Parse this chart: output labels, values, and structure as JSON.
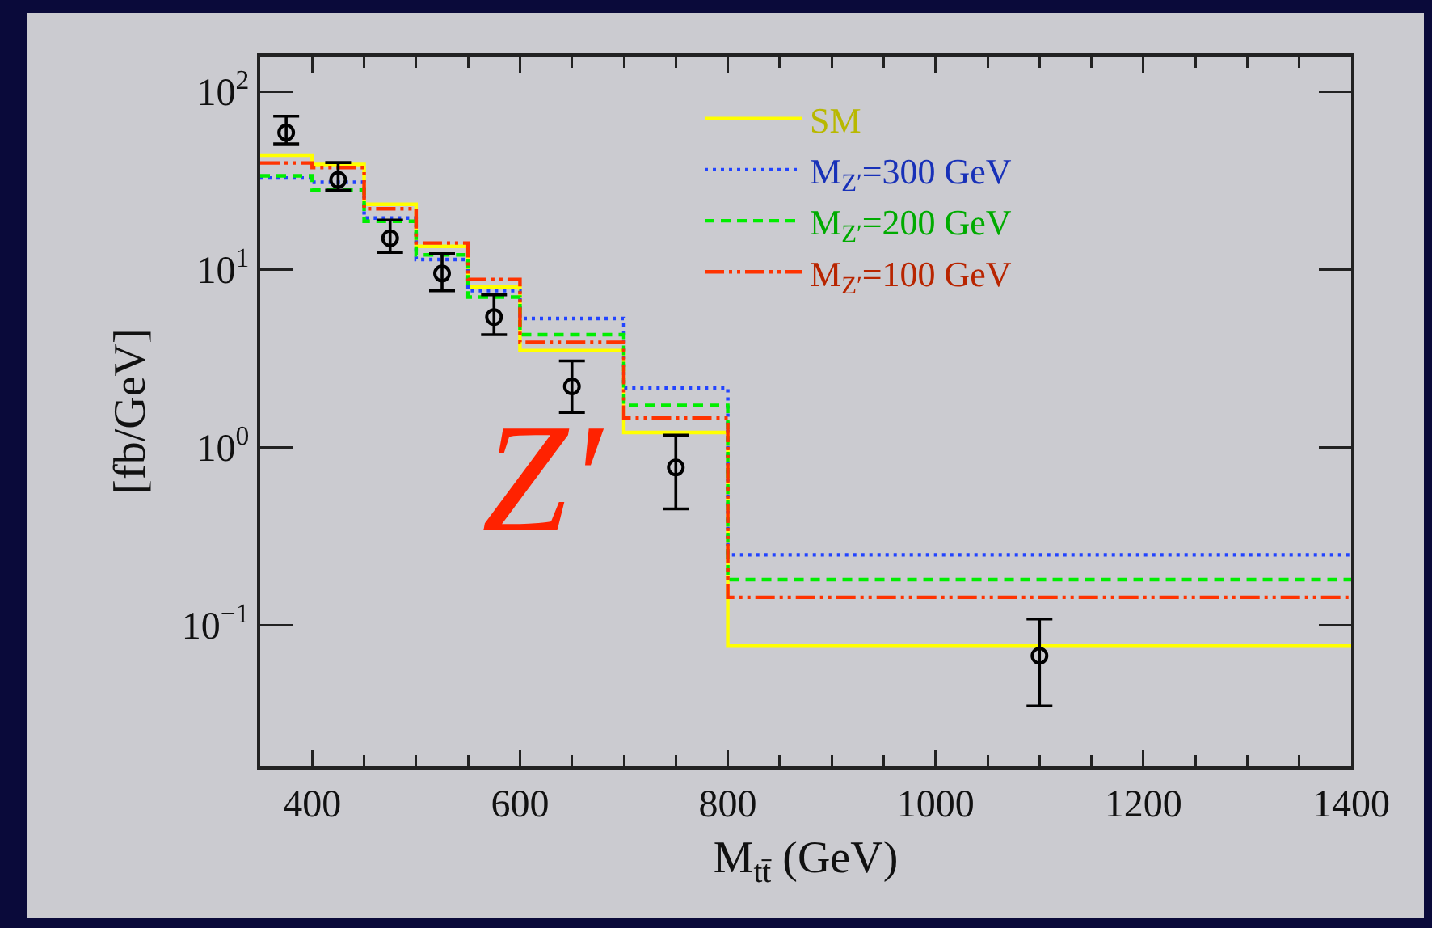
{
  "chart_data": {
    "type": "histogram",
    "xlabel": "M$_{tt̄}$ (GeV)",
    "ylabel": "[fb/GeV]",
    "annotations": [
      "Z′"
    ],
    "bins": [
      350,
      400,
      450,
      500,
      550,
      600,
      700,
      800,
      1400
    ],
    "series": [
      {
        "name": "SM",
        "color": "#ffff00",
        "line_style": "solid",
        "values": [
          44,
          39,
          23.3,
          13.5,
          8.0,
          3.5,
          1.21,
          0.076
        ]
      },
      {
        "name": "M$_{Z′}$=300 GeV",
        "color": "#2244ff",
        "line_style": "dotted",
        "values": [
          32.8,
          31,
          19.5,
          11.4,
          7.6,
          5.3,
          2.16,
          0.248
        ]
      },
      {
        "name": "M$_{Z′}$=200 GeV",
        "color": "#00ee00",
        "line_style": "dashed",
        "values": [
          33.7,
          28.1,
          18.7,
          12.1,
          7.0,
          4.3,
          1.72,
          0.18
        ]
      },
      {
        "name": "M$_{Z′}$=100 GeV",
        "color": "#ff3300",
        "line_style": "dashdot",
        "values": [
          39.8,
          37.5,
          22,
          14.1,
          8.8,
          3.9,
          1.46,
          0.143
        ]
      },
      {
        "type": "scatter",
        "color": "#000000",
        "marker": "circle",
        "x": [
          375,
          425,
          475,
          525,
          575,
          650,
          750,
          1100
        ],
        "values": [
          59,
          32,
          15,
          9.5,
          5.4,
          2.2,
          0.77,
          0.067
        ],
        "errors": [
          [
            51,
            73
          ],
          [
            28,
            40
          ],
          [
            12.5,
            19
          ],
          [
            7.6,
            12.3
          ],
          [
            4.3,
            7.2
          ],
          [
            1.57,
            3.06
          ],
          [
            0.45,
            1.17
          ],
          [
            0.035,
            0.108
          ]
        ]
      }
    ],
    "xlim": [
      350,
      1400
    ],
    "xticks": [
      400,
      {
        "value": 450,
        "label": null
      },
      {
        "value": 500,
        "label": null
      },
      {
        "value": 550,
        "label": null
      },
      600,
      {
        "value": 650,
        "label": null
      },
      {
        "value": 700,
        "label": null
      },
      {
        "value": 750,
        "label": null
      },
      800,
      {
        "value": 850,
        "label": null
      },
      {
        "value": 900,
        "label": null
      },
      {
        "value": 950,
        "label": null
      },
      1000,
      {
        "value": 1050,
        "label": null
      },
      {
        "value": 1100,
        "label": null
      },
      {
        "value": 1150,
        "label": null
      },
      1200,
      {
        "value": 1250,
        "label": null
      },
      {
        "value": 1300,
        "label": null
      },
      {
        "value": 1350,
        "label": null
      },
      1400
    ],
    "ylim": [
      0.016,
      158
    ],
    "yticks": [
      {
        "value": 0.1,
        "label": "10$^{−1}$"
      },
      {
        "value": 1,
        "label": "10$^{0}$"
      },
      {
        "value": 10,
        "label": "10$^{1}$"
      },
      {
        "value": 100,
        "label": "10$^{2}$"
      }
    ],
    "log": "y",
    "grid": false,
    "legend": "top right"
  }
}
